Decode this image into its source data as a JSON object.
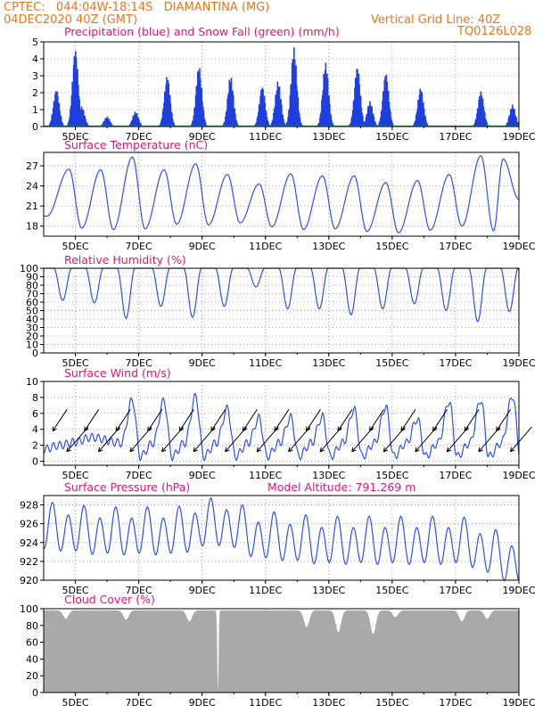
{
  "header": {
    "line1_left": "CPTEC:   044:04W-18:14S   DIAMANTINA (MG)",
    "line2_left": "04DEC2020 40Z (GMT)",
    "line1_right": "Vertical Grid Line: 40Z",
    "line2_right": "TQ0126L028"
  },
  "panels": {
    "precip": {
      "title": "Precipitation (blue) and Snow Fall (green) (mm/h)"
    },
    "temp": {
      "title": "Surface Temperature (nC)"
    },
    "rh": {
      "title": "Relative Humidity (%)"
    },
    "wind": {
      "title": "Surface Wind (m/s)"
    },
    "pressure": {
      "title": "Surface Pressure (hPa)",
      "altitude": "Model Altitude: 791.269 m"
    },
    "cloud": {
      "title": "Cloud Cover (%)"
    }
  },
  "chart_data": [
    {
      "type": "bar",
      "name": "precip",
      "x_ticks": [
        "5DEC",
        "7DEC",
        "9DEC",
        "11DEC",
        "13DEC",
        "15DEC",
        "17DEC",
        "19DEC"
      ],
      "ylim": [
        0,
        5
      ],
      "y_ticks": [
        0,
        1,
        2,
        3,
        4,
        5
      ],
      "colors": {
        "precip": "#1f3fe0",
        "snow": "#22aa22"
      },
      "series": [
        {
          "name": "Precipitation",
          "peaks": [
            [
              4.4,
              2.2
            ],
            [
              5.0,
              4.6
            ],
            [
              5.2,
              1.2
            ],
            [
              6.0,
              0.6
            ],
            [
              6.9,
              0.9
            ],
            [
              7.9,
              3.0
            ],
            [
              8.9,
              3.6
            ],
            [
              9.9,
              3.0
            ],
            [
              10.9,
              2.4
            ],
            [
              11.4,
              2.7
            ],
            [
              11.9,
              4.7
            ],
            [
              12.9,
              3.8
            ],
            [
              13.9,
              3.6
            ],
            [
              14.3,
              1.5
            ],
            [
              14.8,
              3.2
            ],
            [
              15.9,
              2.3
            ],
            [
              17.8,
              2.1
            ],
            [
              18.8,
              1.3
            ]
          ]
        },
        {
          "name": "Snow Fall",
          "values": [
            0
          ]
        }
      ]
    },
    {
      "type": "line",
      "name": "temperature",
      "x_ticks": [
        "5DEC",
        "7DEC",
        "9DEC",
        "11DEC",
        "13DEC",
        "15DEC",
        "17DEC",
        "19DEC"
      ],
      "ylim": [
        16.5,
        29
      ],
      "y_ticks": [
        18,
        21,
        24,
        27
      ],
      "series": [
        {
          "min": [
            [
              4.1,
              19.5
            ],
            [
              5.2,
              17.7
            ],
            [
              6.2,
              17.5
            ],
            [
              7.2,
              17.6
            ],
            [
              8.2,
              18.3
            ],
            [
              9.2,
              18.2
            ],
            [
              10.2,
              18.5
            ],
            [
              11.2,
              17.9
            ],
            [
              12.2,
              17.5
            ],
            [
              13.2,
              17.6
            ],
            [
              14.2,
              17.2
            ],
            [
              15.2,
              17.0
            ],
            [
              16.2,
              17.4
            ],
            [
              17.2,
              18.0
            ],
            [
              18.2,
              17.3
            ],
            [
              19.0,
              22.0
            ]
          ],
          "max": [
            [
              4.8,
              26.5
            ],
            [
              5.8,
              26.4
            ],
            [
              6.8,
              28.3
            ],
            [
              7.8,
              26.4
            ],
            [
              8.8,
              27.3
            ],
            [
              9.8,
              25.7
            ],
            [
              10.8,
              24.3
            ],
            [
              11.8,
              25.8
            ],
            [
              12.8,
              25.5
            ],
            [
              13.8,
              25.5
            ],
            [
              14.8,
              24.5
            ],
            [
              15.8,
              24.8
            ],
            [
              16.8,
              25.7
            ],
            [
              17.8,
              28.5
            ],
            [
              18.5,
              28.0
            ]
          ]
        }
      ]
    },
    {
      "type": "line",
      "name": "humidity",
      "x_ticks": [
        "5DEC",
        "7DEC",
        "9DEC",
        "11DEC",
        "13DEC",
        "15DEC",
        "17DEC",
        "19DEC"
      ],
      "ylim": [
        0,
        100
      ],
      "y_ticks": [
        0,
        10,
        20,
        30,
        40,
        50,
        60,
        70,
        80,
        90,
        100
      ],
      "series": [
        {
          "min": [
            [
              4.6,
              62
            ],
            [
              5.6,
              59
            ],
            [
              6.6,
              41
            ],
            [
              7.7,
              55
            ],
            [
              8.7,
              42
            ],
            [
              9.7,
              55
            ],
            [
              10.7,
              78
            ],
            [
              11.7,
              52
            ],
            [
              12.7,
              52
            ],
            [
              13.7,
              45
            ],
            [
              14.7,
              52
            ],
            [
              15.7,
              58
            ],
            [
              16.7,
              50
            ],
            [
              17.7,
              37
            ],
            [
              18.7,
              49
            ]
          ]
        }
      ]
    },
    {
      "type": "line",
      "name": "wind",
      "x_ticks": [
        "5DEC",
        "7DEC",
        "9DEC",
        "11DEC",
        "13DEC",
        "15DEC",
        "17DEC",
        "19DEC"
      ],
      "ylim": [
        -0.5,
        10
      ],
      "y_ticks": [
        0,
        2,
        4,
        6,
        8,
        10
      ],
      "series": [
        {
          "max": [
            [
              6.8,
              7.7
            ],
            [
              7.8,
              7.6
            ],
            [
              8.8,
              8.1
            ],
            [
              9.8,
              6.6
            ],
            [
              10.8,
              5.4
            ],
            [
              11.8,
              5.5
            ],
            [
              12.8,
              5.6
            ],
            [
              13.8,
              6.5
            ],
            [
              14.8,
              6.8
            ],
            [
              15.8,
              5.3
            ],
            [
              16.8,
              7.5
            ],
            [
              17.8,
              7.7
            ],
            [
              18.8,
              8.2
            ]
          ]
        }
      ]
    },
    {
      "type": "line",
      "name": "pressure",
      "x_ticks": [
        "5DEC",
        "7DEC",
        "9DEC",
        "11DEC",
        "13DEC",
        "15DEC",
        "17DEC",
        "19DEC"
      ],
      "ylim": [
        920,
        929
      ],
      "y_ticks": [
        920,
        922,
        924,
        926,
        928
      ],
      "series": [
        {
          "trend": [
            [
              4.0,
              925.5
            ],
            [
              6.0,
              925.0
            ],
            [
              8.0,
              925.0
            ],
            [
              9.5,
              926.0
            ],
            [
              11.0,
              924.5
            ],
            [
              13.0,
              924.0
            ],
            [
              15.0,
              924.0
            ],
            [
              17.0,
              924.0
            ],
            [
              19.0,
              922.0
            ]
          ]
        }
      ]
    },
    {
      "type": "area",
      "name": "cloud",
      "x_ticks": [
        "5DEC",
        "7DEC",
        "9DEC",
        "11DEC",
        "13DEC",
        "15DEC",
        "17DEC",
        "19DEC"
      ],
      "ylim": [
        0,
        100
      ],
      "y_ticks": [
        0,
        20,
        40,
        60,
        80,
        100
      ],
      "colors": {
        "fill": "#a9a9a9"
      },
      "series": [
        {
          "baseline": 98,
          "dips": [
            [
              4.7,
              88
            ],
            [
              6.6,
              87
            ],
            [
              8.6,
              85
            ],
            [
              9.5,
              0
            ],
            [
              12.3,
              78
            ],
            [
              13.3,
              72
            ],
            [
              14.4,
              70
            ],
            [
              15.1,
              90
            ],
            [
              17.2,
              85
            ],
            [
              18.0,
              88
            ]
          ]
        }
      ]
    }
  ]
}
